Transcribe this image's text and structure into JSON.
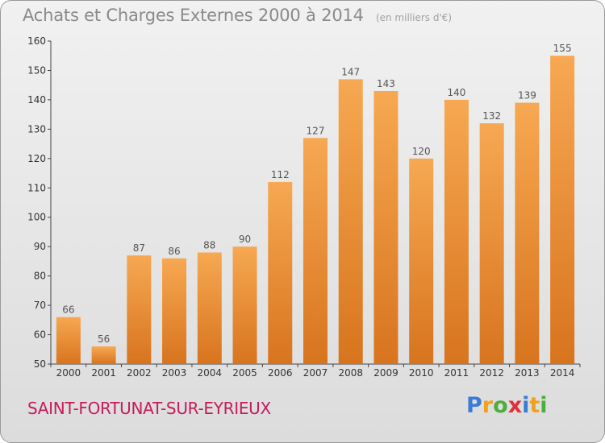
{
  "header": {
    "title": "Achats et Charges Externes 2000 à 2014",
    "subtitle": "(en milliers d'€)"
  },
  "footer": {
    "commune": "SAINT-FORTUNAT-SUR-EYRIEUX",
    "brand": "Proxiti",
    "brand_letters": [
      {
        "ch": "P",
        "color": "#3a7bd5"
      },
      {
        "ch": "r",
        "color": "#f0a020"
      },
      {
        "ch": "o",
        "color": "#4cae3c"
      },
      {
        "ch": "x",
        "color": "#e0303a"
      },
      {
        "ch": "i",
        "color": "#3a7bd5"
      },
      {
        "ch": "t",
        "color": "#f0a020"
      },
      {
        "ch": "i",
        "color": "#4cae3c"
      }
    ]
  },
  "chart_data": {
    "type": "bar",
    "title": "Achats et Charges Externes 2000 à 2014",
    "subtitle": "(en milliers d'€)",
    "categories": [
      "2000",
      "2001",
      "2002",
      "2003",
      "2004",
      "2005",
      "2006",
      "2007",
      "2008",
      "2009",
      "2010",
      "2011",
      "2012",
      "2013",
      "2014"
    ],
    "values": [
      66,
      56,
      87,
      86,
      88,
      90,
      112,
      127,
      147,
      143,
      120,
      140,
      132,
      139,
      155
    ],
    "ylim": [
      50,
      160
    ],
    "yticks": [
      50,
      60,
      70,
      80,
      90,
      100,
      110,
      120,
      130,
      140,
      150,
      160
    ],
    "grid": false,
    "legend": "none",
    "bar_color_top": "#f7a852",
    "bar_color_bottom": "#d8741e"
  }
}
